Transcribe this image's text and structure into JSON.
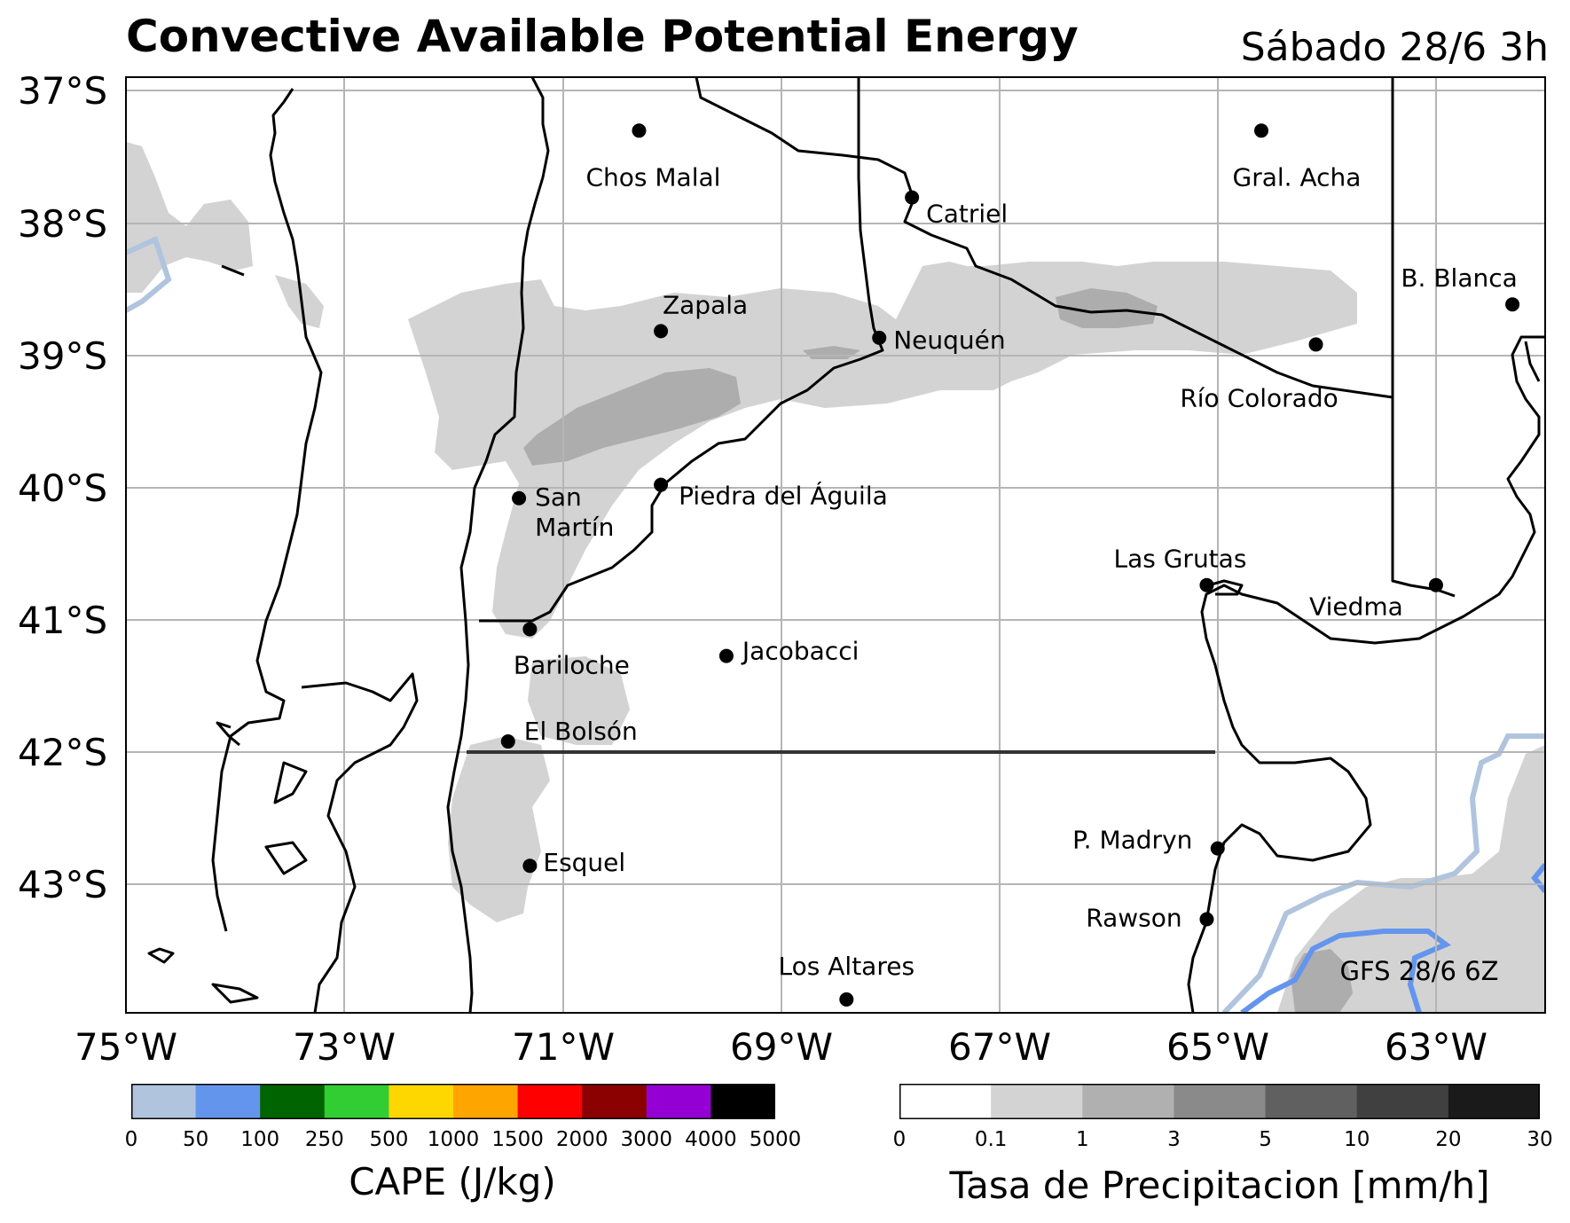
{
  "title": "Convective Available Potential Energy",
  "subtitle": "Sábado 28/6 3h",
  "y_ticks": [
    "37°S",
    "38°S",
    "39°S",
    "40°S",
    "41°S",
    "42°S",
    "43°S"
  ],
  "x_ticks": [
    "75°W",
    "73°W",
    "71°W",
    "69°W",
    "67°W",
    "65°W",
    "63°W"
  ],
  "map_extent": {
    "lon_min": -75,
    "lon_max": -62,
    "lat_min": -44,
    "lat_max": -37
  },
  "cities": [
    {
      "name": "Chos Malal",
      "lon": -70.3,
      "lat": -37.4
    },
    {
      "name": "Gral. Acha",
      "lon": -64.6,
      "lat": -37.4
    },
    {
      "name": "Catriel",
      "lon": -67.8,
      "lat": -37.9
    },
    {
      "name": "B. Blanca",
      "lon": -62.3,
      "lat": -38.7
    },
    {
      "name": "Zapala",
      "lon": -70.1,
      "lat": -38.9
    },
    {
      "name": "Neuquén",
      "lon": -68.1,
      "lat": -38.95
    },
    {
      "name": "Río Colorado",
      "lon": -64.1,
      "lat": -39.0
    },
    {
      "name": "San Martín",
      "lon": -71.4,
      "lat": -40.15
    },
    {
      "name": "Piedra del Águila",
      "lon": -70.1,
      "lat": -40.05
    },
    {
      "name": "Las Grutas",
      "lon": -65.1,
      "lat": -40.8
    },
    {
      "name": "Viedma",
      "lon": -63.0,
      "lat": -40.8
    },
    {
      "name": "Bariloche",
      "lon": -71.3,
      "lat": -41.13
    },
    {
      "name": "Jacobacci",
      "lon": -69.5,
      "lat": -41.33
    },
    {
      "name": "El Bolsón",
      "lon": -71.5,
      "lat": -41.97
    },
    {
      "name": "P. Madryn",
      "lon": -65.0,
      "lat": -42.77
    },
    {
      "name": "Esquel",
      "lon": -71.3,
      "lat": -42.9
    },
    {
      "name": "Rawson",
      "lon": -65.1,
      "lat": -43.3
    },
    {
      "name": "Los Altares",
      "lon": -68.4,
      "lat": -43.9
    }
  ],
  "model_label": "GFS 28/6 6Z",
  "cape_colorbar": {
    "title": "CAPE (J/kg)",
    "ticks": [
      "0",
      "50",
      "100",
      "250",
      "500",
      "1000",
      "1500",
      "2000",
      "3000",
      "4000",
      "5000"
    ],
    "colors": [
      "#b0c4de",
      "#6495ed",
      "#006400",
      "#32cd32",
      "#ffd700",
      "#ffa500",
      "#ff0000",
      "#8b0000",
      "#9400d3",
      "#000000"
    ]
  },
  "precip_colorbar": {
    "title": "Tasa de Precipitacion [mm/h]",
    "ticks": [
      "0",
      "0.1",
      "1",
      "3",
      "5",
      "10",
      "20",
      "30"
    ],
    "colors": [
      "#ffffff",
      "#d3d3d3",
      "#b0b0b0",
      "#8a8a8a",
      "#606060",
      "#404040",
      "#1a1a1a"
    ]
  },
  "colors": {
    "precip_light": "#d3d3d3",
    "precip_medium": "#adadad",
    "cape_light": "#b0c4de",
    "cape_blue": "#6495ed",
    "grid": "#b5b5b5",
    "coast": "#000000"
  }
}
